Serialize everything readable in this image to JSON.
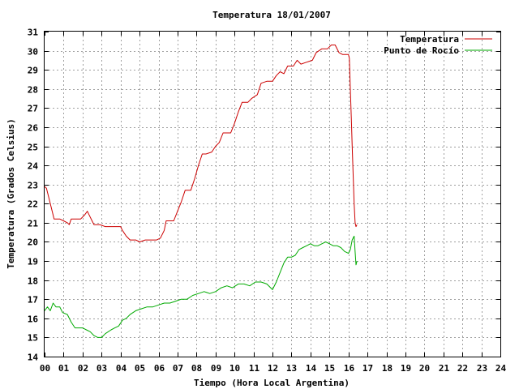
{
  "chart_data": {
    "type": "line",
    "title": "Temperatura 18/01/2007",
    "xlabel": "Tiempo (Hora Local Argentina)",
    "ylabel": "Temperatura (Grados Celsius)",
    "xlim": [
      0,
      24
    ],
    "ylim": [
      14,
      31
    ],
    "x_ticks": [
      "00",
      "01",
      "02",
      "03",
      "04",
      "05",
      "06",
      "07",
      "08",
      "09",
      "10",
      "11",
      "12",
      "13",
      "14",
      "15",
      "16",
      "17",
      "18",
      "19",
      "20",
      "21",
      "22",
      "23",
      "24"
    ],
    "y_ticks": [
      "14",
      "15",
      "16",
      "17",
      "18",
      "19",
      "20",
      "21",
      "22",
      "23",
      "24",
      "25",
      "26",
      "27",
      "28",
      "29",
      "30",
      "31"
    ],
    "grid": true,
    "legend_position": "top-right",
    "series": [
      {
        "name": "Temperatura",
        "color": "#cc0000",
        "points": [
          [
            0.0,
            22.9
          ],
          [
            0.1,
            22.8
          ],
          [
            0.2,
            22.4
          ],
          [
            0.35,
            21.8
          ],
          [
            0.5,
            21.2
          ],
          [
            0.8,
            21.2
          ],
          [
            1.0,
            21.1
          ],
          [
            1.2,
            21.0
          ],
          [
            1.3,
            20.9
          ],
          [
            1.4,
            21.2
          ],
          [
            1.6,
            21.2
          ],
          [
            1.9,
            21.2
          ],
          [
            2.1,
            21.4
          ],
          [
            2.25,
            21.6
          ],
          [
            2.4,
            21.3
          ],
          [
            2.5,
            21.1
          ],
          [
            2.6,
            20.9
          ],
          [
            2.9,
            20.9
          ],
          [
            3.2,
            20.8
          ],
          [
            3.5,
            20.8
          ],
          [
            3.8,
            20.8
          ],
          [
            4.0,
            20.8
          ],
          [
            4.1,
            20.6
          ],
          [
            4.3,
            20.3
          ],
          [
            4.5,
            20.1
          ],
          [
            4.8,
            20.1
          ],
          [
            5.0,
            20.0
          ],
          [
            5.3,
            20.1
          ],
          [
            5.6,
            20.1
          ],
          [
            5.9,
            20.1
          ],
          [
            6.1,
            20.2
          ],
          [
            6.3,
            20.6
          ],
          [
            6.4,
            21.1
          ],
          [
            6.6,
            21.1
          ],
          [
            6.8,
            21.1
          ],
          [
            7.0,
            21.6
          ],
          [
            7.2,
            22.1
          ],
          [
            7.4,
            22.7
          ],
          [
            7.7,
            22.7
          ],
          [
            7.9,
            23.3
          ],
          [
            8.1,
            24.0
          ],
          [
            8.3,
            24.6
          ],
          [
            8.5,
            24.6
          ],
          [
            8.8,
            24.7
          ],
          [
            9.0,
            25.0
          ],
          [
            9.2,
            25.2
          ],
          [
            9.4,
            25.7
          ],
          [
            9.8,
            25.7
          ],
          [
            10.0,
            26.2
          ],
          [
            10.2,
            26.8
          ],
          [
            10.4,
            27.3
          ],
          [
            10.7,
            27.3
          ],
          [
            10.9,
            27.5
          ],
          [
            11.2,
            27.7
          ],
          [
            11.4,
            28.3
          ],
          [
            11.7,
            28.4
          ],
          [
            12.0,
            28.4
          ],
          [
            12.2,
            28.7
          ],
          [
            12.4,
            28.9
          ],
          [
            12.6,
            28.8
          ],
          [
            12.8,
            29.2
          ],
          [
            13.1,
            29.2
          ],
          [
            13.3,
            29.5
          ],
          [
            13.5,
            29.3
          ],
          [
            13.8,
            29.4
          ],
          [
            14.1,
            29.5
          ],
          [
            14.3,
            29.9
          ],
          [
            14.6,
            30.1
          ],
          [
            14.9,
            30.1
          ],
          [
            15.1,
            30.3
          ],
          [
            15.3,
            30.3
          ],
          [
            15.5,
            29.9
          ],
          [
            15.7,
            29.8
          ],
          [
            16.0,
            29.8
          ],
          [
            16.05,
            29.6
          ],
          [
            16.1,
            28.0
          ],
          [
            16.15,
            26.5
          ],
          [
            16.2,
            25.0
          ],
          [
            16.25,
            23.5
          ],
          [
            16.3,
            22.0
          ],
          [
            16.35,
            21.0
          ],
          [
            16.4,
            20.8
          ],
          [
            16.45,
            20.9
          ]
        ]
      },
      {
        "name": "Punto de Rocío",
        "color": "#00aa00",
        "points": [
          [
            0.0,
            16.4
          ],
          [
            0.15,
            16.6
          ],
          [
            0.3,
            16.4
          ],
          [
            0.45,
            16.8
          ],
          [
            0.6,
            16.6
          ],
          [
            0.8,
            16.6
          ],
          [
            0.95,
            16.3
          ],
          [
            1.2,
            16.2
          ],
          [
            1.4,
            15.8
          ],
          [
            1.6,
            15.5
          ],
          [
            1.8,
            15.5
          ],
          [
            2.0,
            15.5
          ],
          [
            2.2,
            15.4
          ],
          [
            2.4,
            15.3
          ],
          [
            2.6,
            15.1
          ],
          [
            2.8,
            15.0
          ],
          [
            3.0,
            15.0
          ],
          [
            3.2,
            15.2
          ],
          [
            3.5,
            15.4
          ],
          [
            3.7,
            15.5
          ],
          [
            3.9,
            15.6
          ],
          [
            4.1,
            15.9
          ],
          [
            4.3,
            16.0
          ],
          [
            4.5,
            16.2
          ],
          [
            4.8,
            16.4
          ],
          [
            5.1,
            16.5
          ],
          [
            5.4,
            16.6
          ],
          [
            5.7,
            16.6
          ],
          [
            6.0,
            16.7
          ],
          [
            6.3,
            16.8
          ],
          [
            6.6,
            16.8
          ],
          [
            6.9,
            16.9
          ],
          [
            7.2,
            17.0
          ],
          [
            7.5,
            17.0
          ],
          [
            7.8,
            17.2
          ],
          [
            8.1,
            17.3
          ],
          [
            8.4,
            17.4
          ],
          [
            8.7,
            17.3
          ],
          [
            9.0,
            17.4
          ],
          [
            9.3,
            17.6
          ],
          [
            9.6,
            17.7
          ],
          [
            9.9,
            17.6
          ],
          [
            10.2,
            17.8
          ],
          [
            10.5,
            17.8
          ],
          [
            10.8,
            17.7
          ],
          [
            11.1,
            17.9
          ],
          [
            11.4,
            17.9
          ],
          [
            11.7,
            17.8
          ],
          [
            12.0,
            17.5
          ],
          [
            12.2,
            17.9
          ],
          [
            12.4,
            18.4
          ],
          [
            12.6,
            18.9
          ],
          [
            12.8,
            19.2
          ],
          [
            13.0,
            19.2
          ],
          [
            13.2,
            19.3
          ],
          [
            13.4,
            19.6
          ],
          [
            13.6,
            19.7
          ],
          [
            13.8,
            19.8
          ],
          [
            14.0,
            19.9
          ],
          [
            14.2,
            19.8
          ],
          [
            14.4,
            19.8
          ],
          [
            14.6,
            19.9
          ],
          [
            14.8,
            20.0
          ],
          [
            15.0,
            19.9
          ],
          [
            15.2,
            19.8
          ],
          [
            15.4,
            19.8
          ],
          [
            15.6,
            19.7
          ],
          [
            15.8,
            19.5
          ],
          [
            16.0,
            19.4
          ],
          [
            16.1,
            19.6
          ],
          [
            16.2,
            20.1
          ],
          [
            16.3,
            20.3
          ],
          [
            16.35,
            19.5
          ],
          [
            16.4,
            18.8
          ],
          [
            16.45,
            19.0
          ]
        ]
      }
    ]
  }
}
